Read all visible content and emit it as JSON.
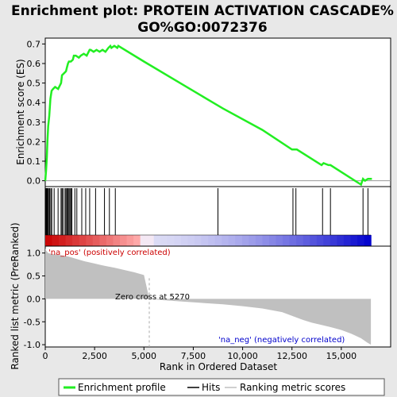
{
  "chart_data": {
    "type": "line",
    "title_line1": "Enrichment plot: PROTEIN ACTIVATION CASCADE%",
    "title_line2": "GO%GO:0072376",
    "colors": {
      "background": "#e8e8e8",
      "plot_bg": "#ffffff",
      "es_line": "#22ee22",
      "hits": "#000000",
      "metric_fill": "#c0c0c0",
      "pos_color": "#cc0000",
      "neg_color": "#0000cc",
      "zero_line": "#aaaaaa"
    },
    "es_panel": {
      "ylabel": "Enrichment score (ES)",
      "ylim": [
        -0.03,
        0.73
      ],
      "yticks": [
        "0.0",
        "0.1",
        "0.2",
        "0.3",
        "0.4",
        "0.5",
        "0.6",
        "0.7"
      ],
      "ytick_values": [
        0.0,
        0.1,
        0.2,
        0.3,
        0.4,
        0.5,
        0.6,
        0.7
      ],
      "x": [
        0,
        40,
        80,
        110,
        150,
        200,
        260,
        320,
        400,
        500,
        650,
        800,
        850,
        950,
        1050,
        1100,
        1150,
        1200,
        1300,
        1400,
        1450,
        1550,
        1700,
        1800,
        1950,
        2100,
        2250,
        2300,
        2450,
        2600,
        2750,
        2900,
        3050,
        3200,
        3300,
        3350,
        3500,
        3650,
        3700,
        5000,
        7000,
        9000,
        11000,
        12500,
        12650,
        12750,
        14000,
        14100,
        14350,
        14450,
        16000,
        16100,
        16200,
        16350,
        16550
      ],
      "y": [
        0.0,
        0.05,
        0.12,
        0.2,
        0.28,
        0.33,
        0.42,
        0.46,
        0.47,
        0.48,
        0.47,
        0.5,
        0.54,
        0.55,
        0.56,
        0.58,
        0.6,
        0.61,
        0.61,
        0.62,
        0.64,
        0.64,
        0.63,
        0.64,
        0.65,
        0.64,
        0.67,
        0.67,
        0.66,
        0.67,
        0.66,
        0.67,
        0.66,
        0.68,
        0.69,
        0.68,
        0.69,
        0.68,
        0.69,
        0.61,
        0.49,
        0.37,
        0.26,
        0.16,
        0.16,
        0.16,
        0.08,
        0.09,
        0.08,
        0.08,
        -0.02,
        0.01,
        0.0,
        0.01,
        0.01
      ]
    },
    "hits": [
      10,
      40,
      70,
      100,
      130,
      170,
      220,
      280,
      330,
      450,
      650,
      800,
      850,
      900,
      1000,
      1050,
      1100,
      1150,
      1200,
      1250,
      1300,
      1350,
      1500,
      1600,
      1850,
      2050,
      2250,
      2550,
      3000,
      3250,
      3550,
      8750,
      12550,
      12700,
      14050,
      14450,
      16100,
      16350
    ],
    "color_bar": {
      "pos_end": 4700,
      "zero_cross": 5270,
      "n": 16500
    },
    "metric_panel": {
      "ylabel": "Ranked list metric (PreRanked)",
      "ylim": [
        -1.05,
        1.15
      ],
      "yticks": [
        "1.0",
        "0.5",
        "0.0",
        "-0.5",
        "-1.0"
      ],
      "ytick_values": [
        1.0,
        0.5,
        0.0,
        -0.5,
        -1.0
      ],
      "x": [
        0,
        50,
        150,
        300,
        500,
        800,
        1200,
        1600,
        2000,
        2500,
        3000,
        3500,
        4000,
        4500,
        5000,
        5270,
        6000,
        7000,
        8000,
        9000,
        10000,
        11000,
        12000,
        12500,
        13000,
        13500,
        14000,
        14500,
        15000,
        15500,
        16000,
        16300,
        16500
      ],
      "y": [
        1.1,
        1.05,
        1.0,
        0.98,
        0.97,
        0.95,
        0.92,
        0.87,
        0.82,
        0.77,
        0.72,
        0.68,
        0.63,
        0.58,
        0.52,
        0.0,
        -0.03,
        -0.06,
        -0.09,
        -0.12,
        -0.16,
        -0.21,
        -0.29,
        -0.37,
        -0.45,
        -0.52,
        -0.57,
        -0.62,
        -0.68,
        -0.76,
        -0.86,
        -0.95,
        -1.0
      ],
      "pos_label": "'na_pos' (positively correlated)",
      "neg_label": "'na_neg' (negatively correlated)",
      "zero_cross_label": "Zero cross at 5270"
    },
    "xaxis": {
      "label": "Rank in Ordered Dataset",
      "xlim": [
        0,
        17500
      ],
      "ticks": [
        "0",
        "2,500",
        "5,000",
        "7,500",
        "10,000",
        "12,500",
        "15,000"
      ],
      "tick_values": [
        0,
        2500,
        5000,
        7500,
        10000,
        12500,
        15000
      ]
    },
    "legend": {
      "position": "bottom",
      "items": [
        {
          "label": "Enrichment profile",
          "color": "#22ee22"
        },
        {
          "label": "Hits",
          "color": "#000000"
        },
        {
          "label": "Ranking metric scores",
          "color": "#c0c0c0"
        }
      ]
    }
  }
}
